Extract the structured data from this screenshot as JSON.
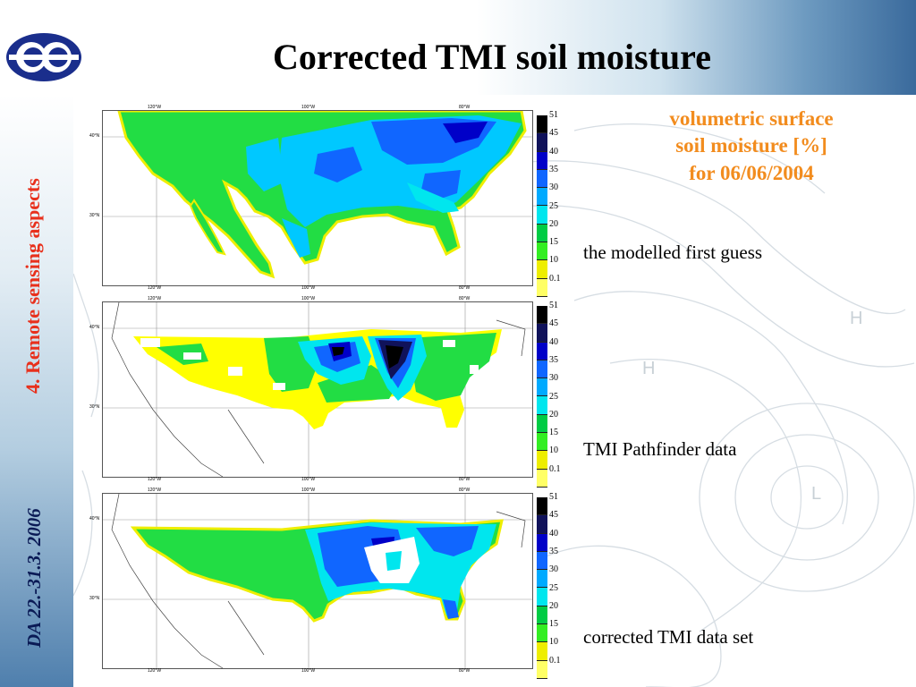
{
  "slide": {
    "title": "Corrected TMI soil moisture",
    "sidebar_topic": "4. Remote sensing aspects",
    "sidebar_date": "DA 22.-31.3. 2006"
  },
  "legend_title": {
    "line1": "volumetric surface",
    "line2": "soil moisture [%]",
    "line3": "for 06/06/2004"
  },
  "panels": [
    {
      "caption": "the modelled first guess"
    },
    {
      "caption": "TMI Pathfinder data"
    },
    {
      "caption": "corrected TMI data set"
    }
  ],
  "map_axes": {
    "lon_labels": [
      "120°W",
      "100°W",
      "80°W"
    ],
    "lat_labels": [
      "40°N",
      "30°N"
    ]
  },
  "colorbar": {
    "labels": [
      "51",
      "45",
      "40",
      "35",
      "30",
      "25",
      "20",
      "15",
      "10",
      "0.1"
    ],
    "colors": [
      "#000000",
      "#10125a",
      "#0000c8",
      "#1066ff",
      "#00aaff",
      "#00e6ee",
      "#00cc44",
      "#33ee22",
      "#eeee00",
      "#ffff66"
    ]
  },
  "colors": {
    "title_orange": "#f28c1e",
    "sidebar_topic_red": "#e8301c",
    "sidebar_date_navy": "#0a1a55"
  }
}
